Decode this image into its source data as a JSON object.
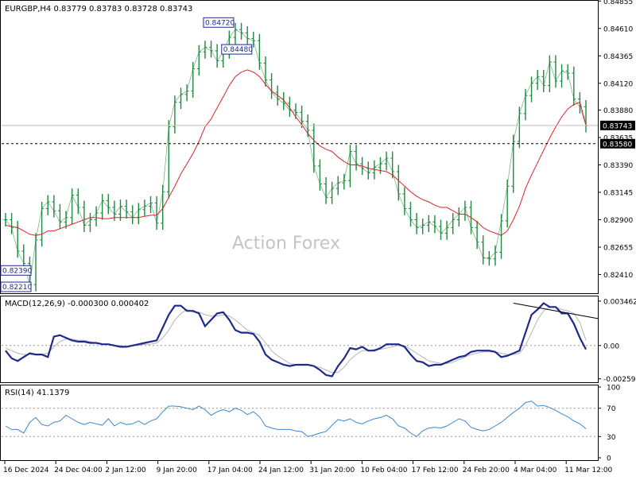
{
  "colors": {
    "background": "#ffffff",
    "price_bars": "#1f8a3f",
    "moving_average": "#d9242a",
    "macd_line": "#1d2a8c",
    "signal_line": "#b4b4b4",
    "rsi_line": "#3a86d0",
    "label_box_border": "#1d2a8c",
    "label_box_text": "#1d2a8c",
    "current_price_box": "#000000",
    "level_line": "#000000"
  },
  "chart_data": [
    {
      "type": "line",
      "panel": "price",
      "header": "EURGBP,H4  0.83779 0.83783 0.83728 0.83743",
      "watermark": "Action Forex",
      "ylim": [
        0.8225,
        0.8485
      ],
      "y_ticks": [
        "0.84855",
        "0.84610",
        "0.84365",
        "0.84120",
        "0.83880",
        "0.83635",
        "0.83390",
        "0.83145",
        "0.82900",
        "0.82655",
        "0.82410"
      ],
      "current_price": "0.83743",
      "level_line": "0.83580",
      "annotations": [
        {
          "text": "0.84720",
          "value": 0.8472
        },
        {
          "text": "0.84480",
          "value": 0.8448
        },
        {
          "text": "0.82390",
          "value": 0.8239
        },
        {
          "text": "0.82210",
          "value": 0.8221
        }
      ],
      "series": [
        {
          "values": [
            0.829,
            0.8283,
            0.8262,
            0.8251,
            0.8232,
            0.8272,
            0.83,
            0.8306,
            0.8298,
            0.8288,
            0.8292,
            0.8312,
            0.8301,
            0.8285,
            0.829,
            0.8296,
            0.8307,
            0.8301,
            0.8295,
            0.8302,
            0.8297,
            0.8292,
            0.8299,
            0.8302,
            0.8305,
            0.8287,
            0.8315,
            0.8373,
            0.8395,
            0.8402,
            0.8405,
            0.8425,
            0.844,
            0.8444,
            0.8441,
            0.8432,
            0.844,
            0.8453,
            0.846,
            0.8457,
            0.8452,
            0.845,
            0.843,
            0.8415,
            0.8404,
            0.8398,
            0.8394,
            0.8388,
            0.8386,
            0.8378,
            0.837,
            0.8338,
            0.8322,
            0.831,
            0.8318,
            0.8323,
            0.8325,
            0.8351,
            0.834,
            0.8336,
            0.8332,
            0.8337,
            0.834,
            0.8345,
            0.8333,
            0.8313,
            0.83,
            0.829,
            0.8283,
            0.8285,
            0.8288,
            0.8284,
            0.8278,
            0.8283,
            0.829,
            0.8295,
            0.8301,
            0.8283,
            0.827,
            0.8256,
            0.8255,
            0.8261,
            0.8289,
            0.832,
            0.836,
            0.8385,
            0.8401,
            0.8412,
            0.8418,
            0.841,
            0.8431,
            0.8414,
            0.8423,
            0.8421,
            0.8398,
            0.8391,
            0.8374
          ],
          "y2": [
            0.8285,
            0.8284,
            0.8283,
            0.828,
            0.8277,
            0.8276,
            0.8277,
            0.828,
            0.828,
            0.8282,
            0.8284,
            0.8286,
            0.8288,
            0.829,
            0.8292,
            0.8292,
            0.8291,
            0.8291,
            0.8292,
            0.8292,
            0.8292,
            0.8292,
            0.8292,
            0.8293,
            0.8294,
            0.8294,
            0.83,
            0.831,
            0.832,
            0.8331,
            0.834,
            0.8349,
            0.836,
            0.8373,
            0.838,
            0.839,
            0.84,
            0.841,
            0.8418,
            0.8422,
            0.8424,
            0.8422,
            0.8418,
            0.8411,
            0.8405,
            0.8401,
            0.8397,
            0.839,
            0.8382,
            0.8375,
            0.8367,
            0.8361,
            0.8356,
            0.8353,
            0.8351,
            0.8346,
            0.8342,
            0.8339,
            0.8339,
            0.8338,
            0.8336,
            0.8335,
            0.8334,
            0.8333,
            0.833,
            0.8325,
            0.832,
            0.8315,
            0.8311,
            0.8308,
            0.8306,
            0.8303,
            0.8301,
            0.8301,
            0.8298,
            0.8295,
            0.8295,
            0.8292,
            0.8288,
            0.8283,
            0.828,
            0.8278,
            0.8276,
            0.828,
            0.829,
            0.8302,
            0.8318,
            0.833,
            0.8341,
            0.8352,
            0.8363,
            0.8373,
            0.8382,
            0.8389,
            0.8393,
            0.8395,
            0.8375
          ]
        }
      ]
    },
    {
      "type": "line",
      "panel": "macd",
      "header": "MACD(12,26,9) -0.000300 0.000402",
      "ylim": [
        -0.0028,
        0.0037
      ],
      "y_ticks": [
        "0.003462",
        "0.00",
        "-0.002593"
      ],
      "series": [
        {
          "values": [
            -0.0004,
            -0.001,
            -0.0012,
            -0.0009,
            -0.0006,
            -0.0007,
            -0.0007,
            -0.0009,
            0.0007,
            0.0008,
            0.0006,
            0.0004,
            0.0003,
            0.0003,
            0.0002,
            0.0002,
            0.0001,
            0.0001,
            0.0,
            -0.0001,
            -0.0001,
            0.0,
            0.0001,
            0.0002,
            0.0003,
            0.0004,
            0.0014,
            0.0024,
            0.0031,
            0.0031,
            0.0027,
            0.0027,
            0.0025,
            0.0015,
            0.002,
            0.0025,
            0.0026,
            0.002,
            0.0012,
            0.001,
            0.001,
            0.0009,
            0.0003,
            -0.0007,
            -0.0011,
            -0.0013,
            -0.0015,
            -0.0016,
            -0.0015,
            -0.0015,
            -0.0015,
            -0.0016,
            -0.0019,
            -0.0023,
            -0.0024,
            -0.0016,
            -0.001,
            -0.0002,
            -0.0003,
            -0.0001,
            -0.0004,
            -0.0004,
            -0.0002,
            0.0001,
            0.0001,
            0.0001,
            -0.0001,
            -0.0007,
            -0.0012,
            -0.0013,
            -0.0016,
            -0.0015,
            -0.0015,
            -0.0013,
            -0.0011,
            -0.0009,
            -0.0008,
            -0.0005,
            -0.0004,
            -0.0004,
            -0.0004,
            -0.0005,
            -0.0009,
            -0.0008,
            -0.0006,
            -0.0004,
            0.001,
            0.0024,
            0.0028,
            0.0033,
            0.003,
            0.003,
            0.0025,
            0.0025,
            0.0017,
            0.0006,
            -0.0003
          ]
        },
        {
          "values": [
            -0.0002,
            -0.0004,
            -0.0006,
            -0.0007,
            -0.0007,
            -0.0007,
            -0.0007,
            -0.0006,
            -0.0001,
            0.0003,
            0.0005,
            0.0005,
            0.0004,
            0.0004,
            0.0003,
            0.0002,
            0.0001,
            0.0001,
            0.0,
            0.0,
            -0.0001,
            0.0,
            0.0,
            0.0001,
            0.0001,
            0.0002,
            0.0006,
            0.0012,
            0.002,
            0.0025,
            0.0028,
            0.0026,
            0.0026,
            0.0024,
            0.0023,
            0.0023,
            0.0024,
            0.0023,
            0.002,
            0.0016,
            0.0012,
            0.001,
            0.0008,
            0.0002,
            -0.0004,
            -0.0008,
            -0.0011,
            -0.0014,
            -0.0015,
            -0.0015,
            -0.0015,
            -0.0016,
            -0.0017,
            -0.0019,
            -0.0021,
            -0.0021,
            -0.0017,
            -0.0011,
            -0.0007,
            -0.0004,
            -0.0004,
            -0.0003,
            -0.0003,
            -0.0002,
            -0.0001,
            0.0,
            0.0,
            -0.0003,
            -0.0006,
            -0.0009,
            -0.0012,
            -0.0013,
            -0.0014,
            -0.0014,
            -0.0013,
            -0.0011,
            -0.0009,
            -0.0007,
            -0.0006,
            -0.0005,
            -0.0005,
            -0.0005,
            -0.0006,
            -0.0007,
            -0.0007,
            -0.0006,
            0.0,
            0.001,
            0.002,
            0.0027,
            0.003,
            0.003,
            0.0028,
            0.0027,
            0.0025,
            0.0018,
            0.0004
          ]
        }
      ],
      "trendline": {
        "x": [
          84,
          98
        ],
        "y": [
          0.0033,
          0.0021
        ]
      }
    },
    {
      "type": "line",
      "panel": "rsi",
      "header": "RSI(14) 41.1379",
      "ylim": [
        0,
        100
      ],
      "y_ticks": [
        "100",
        "70",
        "30",
        "0"
      ],
      "series": [
        {
          "values": [
            45,
            40,
            40,
            35,
            50,
            57,
            47,
            45,
            50,
            52,
            60,
            55,
            50,
            47,
            50,
            48,
            46,
            55,
            45,
            50,
            47,
            48,
            52,
            47,
            52,
            55,
            65,
            73,
            73,
            72,
            70,
            68,
            73,
            68,
            60,
            65,
            68,
            65,
            70,
            67,
            61,
            65,
            58,
            45,
            42,
            40,
            40,
            40,
            38,
            37,
            30,
            32,
            35,
            37,
            46,
            54,
            52,
            55,
            50,
            48,
            52,
            55,
            57,
            60,
            55,
            45,
            42,
            35,
            30,
            38,
            42,
            43,
            42,
            45,
            50,
            55,
            52,
            43,
            40,
            38,
            40,
            45,
            50,
            57,
            64,
            70,
            78,
            80,
            73,
            74,
            71,
            67,
            62,
            58,
            52,
            48,
            41
          ]
        }
      ]
    },
    {
      "type": "line",
      "panel": "time-axis",
      "x_ticks": [
        "16 Dec 2024",
        "24 Dec 04:00",
        "2 Jan 12:00",
        "9 Jan 20:00",
        "17 Jan 04:00",
        "24 Jan 12:00",
        "31 Jan 20:00",
        "10 Feb 04:00",
        "17 Feb 12:00",
        "24 Feb 20:00",
        "4 Mar 04:00",
        "11 Mar 12:00"
      ]
    }
  ]
}
